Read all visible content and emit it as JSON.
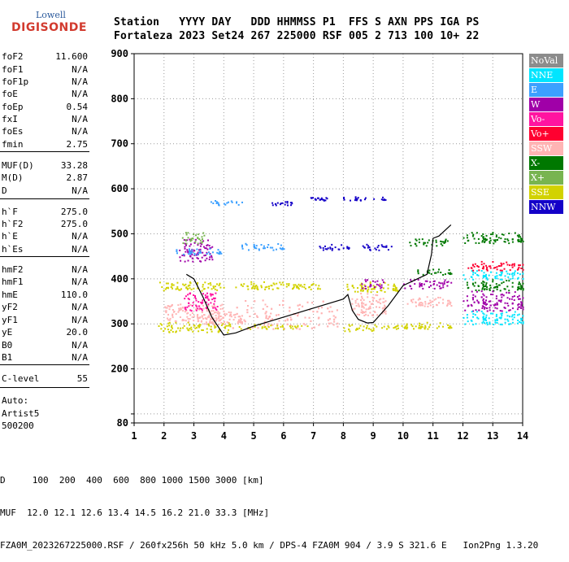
{
  "logo": {
    "top": "Lowell",
    "main": "DIGISONDE"
  },
  "header": {
    "line1": "Station   YYYY DAY   DDD HHMMSS P1  FFS S AXN PPS IGA PS",
    "line2": "Fortaleza 2023 Set24 267 225000 RSF 005 2 713 100 10+ 22"
  },
  "params": [
    {
      "label": "foF2",
      "value": "11.600"
    },
    {
      "label": "foF1",
      "value": "N/A"
    },
    {
      "label": "foF1p",
      "value": "N/A"
    },
    {
      "label": "foE",
      "value": "N/A"
    },
    {
      "label": "foEp",
      "value": "0.54"
    },
    {
      "label": "fxI",
      "value": "N/A"
    },
    {
      "label": "foEs",
      "value": "N/A"
    },
    {
      "label": "fmin",
      "value": "2.75"
    },
    {
      "label": "MUF(D)",
      "value": "33.28"
    },
    {
      "label": "M(D)",
      "value": "2.87"
    },
    {
      "label": "D",
      "value": "N/A"
    },
    {
      "label": "h`F",
      "value": "275.0"
    },
    {
      "label": "h`F2",
      "value": "275.0"
    },
    {
      "label": "h`E",
      "value": "N/A"
    },
    {
      "label": "h`Es",
      "value": "N/A"
    },
    {
      "label": "hmF2",
      "value": "N/A"
    },
    {
      "label": "hmF1",
      "value": "N/A"
    },
    {
      "label": "hmE",
      "value": "110.0"
    },
    {
      "label": "yF2",
      "value": "N/A"
    },
    {
      "label": "yF1",
      "value": "N/A"
    },
    {
      "label": "yE",
      "value": "20.0"
    },
    {
      "label": "B0",
      "value": "N/A"
    },
    {
      "label": "B1",
      "value": "N/A"
    },
    {
      "label": "C-level",
      "value": "55"
    }
  ],
  "auto": [
    "Auto:",
    "Artist5",
    "500200"
  ],
  "legend": [
    {
      "name": "NoVal",
      "color": "#8c8c8c"
    },
    {
      "name": "NNE",
      "color": "#00e5ff"
    },
    {
      "name": "E",
      "color": "#3ca0ff"
    },
    {
      "name": "W",
      "color": "#a000a8"
    },
    {
      "name": "Vo-",
      "color": "#ff14a0"
    },
    {
      "name": "Vo+",
      "color": "#ff0030"
    },
    {
      "name": "SSW",
      "color": "#ffb4b4"
    },
    {
      "name": "X-",
      "color": "#007800"
    },
    {
      "name": "X+",
      "color": "#78b450"
    },
    {
      "name": "SSE",
      "color": "#d2d200"
    },
    {
      "name": "NNW",
      "color": "#1400c8"
    }
  ],
  "footer": {
    "line1": "D     100  200  400  600  800 1000 1500 3000 [km]",
    "line2": "MUF  12.0 12.1 12.6 13.4 14.5 16.2 21.0 33.3 [MHz]",
    "line3": "FZA0M_2023267225000.RSF / 260fx256h 50 kHz 5.0 km / DPS-4 FZA0M 904 / 3.9 S 321.6 E   Ion2Png 1.3.20"
  },
  "chart_data": {
    "type": "scatter",
    "xlabel": "",
    "ylabel": "",
    "xlim": [
      1,
      14
    ],
    "ylim": [
      80,
      900
    ],
    "xticks": [
      1,
      2,
      3,
      4,
      5,
      6,
      7,
      8,
      9,
      10,
      11,
      12,
      13,
      14
    ],
    "yticks": [
      80,
      100,
      200,
      300,
      400,
      500,
      600,
      700,
      800,
      900
    ],
    "ytick_labels": [
      "80",
      "",
      "200",
      "300",
      "400",
      "500",
      "600",
      "700",
      "800",
      "900"
    ],
    "grid": true,
    "echo_clusters": [
      {
        "x": [
          1.8,
          4.0
        ],
        "y": [
          375,
          395
        ],
        "color": "#d2d200"
      },
      {
        "x": [
          1.8,
          4.2
        ],
        "y": [
          282,
          305
        ],
        "color": "#d2d200"
      },
      {
        "x": [
          2.0,
          4.0
        ],
        "y": [
          305,
          345
        ],
        "color": "#ffb4b4"
      },
      {
        "x": [
          2.6,
          3.8
        ],
        "y": [
          330,
          370
        ],
        "color": "#ff14a0"
      },
      {
        "x": [
          2.5,
          3.6
        ],
        "y": [
          440,
          490
        ],
        "color": "#a000a8"
      },
      {
        "x": [
          2.3,
          3.9
        ],
        "y": [
          455,
          470
        ],
        "color": "#3ca0ff"
      },
      {
        "x": [
          2.6,
          3.4
        ],
        "y": [
          480,
          505
        ],
        "color": "#78b450"
      },
      {
        "x": [
          3.0,
          4.6
        ],
        "y": [
          300,
          330
        ],
        "color": "#ffb4b4"
      },
      {
        "x": [
          4.2,
          7.8
        ],
        "y": [
          290,
          355
        ],
        "color": "#ffb4b4"
      },
      {
        "x": [
          4.2,
          6.5
        ],
        "y": [
          378,
          395
        ],
        "color": "#d2d200"
      },
      {
        "x": [
          4.5,
          6.0
        ],
        "y": [
          465,
          480
        ],
        "color": "#3ca0ff"
      },
      {
        "x": [
          4.5,
          6.8
        ],
        "y": [
          290,
          300
        ],
        "color": "#d2d200"
      },
      {
        "x": [
          6.4,
          7.2
        ],
        "y": [
          378,
          392
        ],
        "color": "#d2d200"
      },
      {
        "x": [
          7.0,
          8.2
        ],
        "y": [
          465,
          478
        ],
        "color": "#1400c8"
      },
      {
        "x": [
          7.9,
          9.4
        ],
        "y": [
          575,
          585
        ],
        "color": "#1400c8"
      },
      {
        "x": [
          6.8,
          7.5
        ],
        "y": [
          575,
          582
        ],
        "color": "#1400c8"
      },
      {
        "x": [
          5.6,
          6.4
        ],
        "y": [
          565,
          575
        ],
        "color": "#1400c8"
      },
      {
        "x": [
          3.3,
          4.6
        ],
        "y": [
          565,
          575
        ],
        "color": "#3ca0ff"
      },
      {
        "x": [
          8.0,
          9.8
        ],
        "y": [
          372,
          395
        ],
        "color": "#d2d200"
      },
      {
        "x": [
          8.6,
          9.4
        ],
        "y": [
          380,
          400
        ],
        "color": "#a000a8"
      },
      {
        "x": [
          8.2,
          9.4
        ],
        "y": [
          320,
          370
        ],
        "color": "#ffb4b4"
      },
      {
        "x": [
          8.0,
          9.2
        ],
        "y": [
          285,
          300
        ],
        "color": "#d2d200"
      },
      {
        "x": [
          8.4,
          9.6
        ],
        "y": [
          465,
          478
        ],
        "color": "#1400c8"
      },
      {
        "x": [
          9.2,
          10.1
        ],
        "y": [
          290,
          300
        ],
        "color": "#d2d200"
      },
      {
        "x": [
          10.0,
          11.6
        ],
        "y": [
          290,
          305
        ],
        "color": "#d2d200"
      },
      {
        "x": [
          10.0,
          11.6
        ],
        "y": [
          380,
          400
        ],
        "color": "#a000a8"
      },
      {
        "x": [
          10.0,
          11.6
        ],
        "y": [
          340,
          362
        ],
        "color": "#ffb4b4"
      },
      {
        "x": [
          10.4,
          11.6
        ],
        "y": [
          410,
          425
        ],
        "color": "#007800"
      },
      {
        "x": [
          10.2,
          11.6
        ],
        "y": [
          475,
          490
        ],
        "color": "#007800"
      },
      {
        "x": [
          12.0,
          14.0
        ],
        "y": [
          375,
          400
        ],
        "color": "#007800"
      },
      {
        "x": [
          12.0,
          14.0
        ],
        "y": [
          400,
          420
        ],
        "color": "#00e5ff"
      },
      {
        "x": [
          12.0,
          14.0
        ],
        "y": [
          330,
          375
        ],
        "color": "#a000a8"
      },
      {
        "x": [
          12.0,
          14.0
        ],
        "y": [
          300,
          330
        ],
        "color": "#00e5ff"
      },
      {
        "x": [
          12.0,
          14.0
        ],
        "y": [
          480,
          505
        ],
        "color": "#007800"
      },
      {
        "x": [
          12.0,
          14.0
        ],
        "y": [
          420,
          440
        ],
        "color": "#ff0030"
      }
    ],
    "trace": {
      "color": "#000000",
      "points": [
        [
          2.75,
          410
        ],
        [
          3.0,
          400
        ],
        [
          3.3,
          360
        ],
        [
          3.6,
          315
        ],
        [
          4.0,
          275
        ],
        [
          4.4,
          280
        ],
        [
          5.0,
          295
        ],
        [
          6.0,
          315
        ],
        [
          7.0,
          335
        ],
        [
          8.0,
          355
        ],
        [
          8.15,
          365
        ],
        [
          8.3,
          330
        ],
        [
          8.5,
          310
        ],
        [
          8.8,
          302
        ],
        [
          9.0,
          303
        ],
        [
          9.5,
          340
        ],
        [
          10.0,
          385
        ],
        [
          10.8,
          410
        ],
        [
          10.95,
          455
        ],
        [
          11.0,
          490
        ],
        [
          11.2,
          495
        ],
        [
          11.6,
          520
        ]
      ]
    }
  }
}
